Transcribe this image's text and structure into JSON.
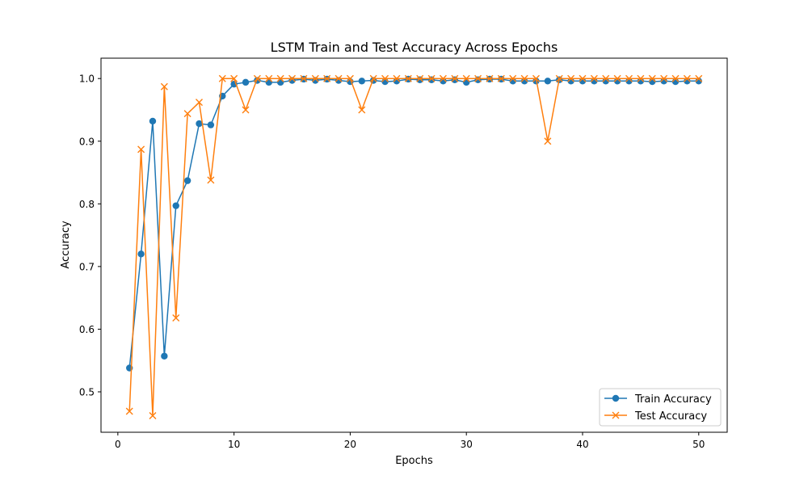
{
  "chart_data": {
    "type": "line",
    "title": "LSTM Train and Test Accuracy Across Epochs",
    "xlabel": "Epochs",
    "ylabel": "Accuracy",
    "xlim": [
      -1.45,
      52.45
    ],
    "ylim": [
      0.4355,
      1.0325
    ],
    "xticks": [
      0,
      10,
      20,
      30,
      40,
      50
    ],
    "xtick_labels": [
      "0",
      "10",
      "20",
      "30",
      "40",
      "50"
    ],
    "yticks": [
      0.5,
      0.6,
      0.7,
      0.8,
      0.9,
      1.0
    ],
    "ytick_labels": [
      "0.5",
      "0.6",
      "0.7",
      "0.8",
      "0.9",
      "1.0"
    ],
    "grid": false,
    "legend_position": "lower right",
    "x": [
      1,
      2,
      3,
      4,
      5,
      6,
      7,
      8,
      9,
      10,
      11,
      12,
      13,
      14,
      15,
      16,
      17,
      18,
      19,
      20,
      21,
      22,
      23,
      24,
      25,
      26,
      27,
      28,
      29,
      30,
      31,
      32,
      33,
      34,
      35,
      36,
      37,
      38,
      39,
      40,
      41,
      42,
      43,
      44,
      45,
      46,
      47,
      48,
      49,
      50
    ],
    "series": [
      {
        "name": "Train Accuracy",
        "color": "#1f77b4",
        "marker": "circle",
        "values": [
          0.538,
          0.72,
          0.932,
          0.557,
          0.797,
          0.837,
          0.928,
          0.926,
          0.972,
          0.991,
          0.994,
          0.997,
          0.994,
          0.994,
          0.997,
          0.999,
          0.997,
          0.999,
          0.997,
          0.995,
          0.996,
          0.997,
          0.995,
          0.996,
          0.999,
          0.998,
          0.998,
          0.996,
          0.998,
          0.994,
          0.998,
          0.999,
          0.999,
          0.996,
          0.996,
          0.996,
          0.996,
          0.998,
          0.996,
          0.996,
          0.996,
          0.996,
          0.996,
          0.996,
          0.996,
          0.995,
          0.996,
          0.995,
          0.996,
          0.996
        ]
      },
      {
        "name": "Test Accuracy",
        "color": "#ff7f0e",
        "marker": "x",
        "values": [
          0.469,
          0.887,
          0.462,
          0.987,
          0.618,
          0.944,
          0.962,
          0.838,
          1.0,
          1.0,
          0.95,
          1.0,
          1.0,
          1.0,
          1.0,
          1.0,
          1.0,
          1.0,
          1.0,
          1.0,
          0.95,
          1.0,
          1.0,
          1.0,
          1.0,
          1.0,
          1.0,
          1.0,
          1.0,
          1.0,
          1.0,
          1.0,
          1.0,
          1.0,
          1.0,
          1.0,
          0.9,
          1.0,
          1.0,
          1.0,
          1.0,
          1.0,
          1.0,
          1.0,
          1.0,
          1.0,
          1.0,
          1.0,
          1.0,
          1.0
        ]
      }
    ]
  }
}
